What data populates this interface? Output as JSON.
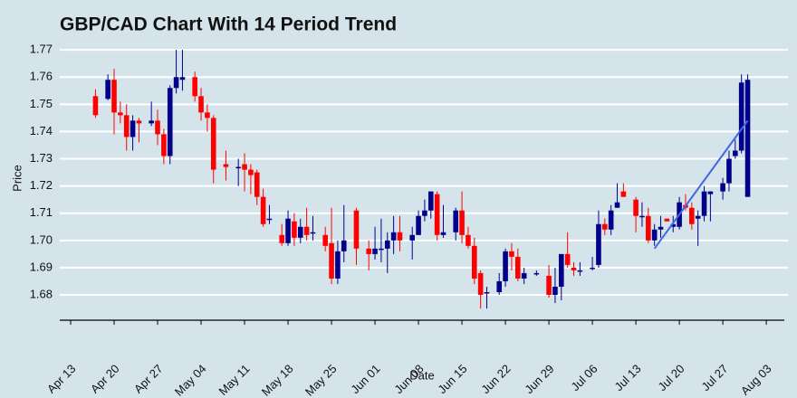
{
  "chart_data": {
    "type": "candlestick",
    "title": "GBP/CAD Chart With 14 Period Trend",
    "xlabel": "Date",
    "ylabel": "Price",
    "x": [
      4,
      6,
      7,
      8,
      9,
      10,
      11,
      13,
      14,
      15,
      16,
      17,
      18,
      20,
      21,
      22,
      23,
      25,
      27,
      28,
      29,
      30,
      31,
      32,
      34,
      35,
      36,
      37,
      38,
      39,
      41,
      42,
      43,
      44,
      46,
      48,
      49,
      50,
      51,
      52,
      53,
      55,
      56,
      57,
      58,
      59,
      60,
      62,
      63,
      64,
      65,
      66,
      67,
      69,
      70,
      71,
      72,
      73,
      75,
      77,
      78,
      79,
      80,
      81,
      82,
      84,
      85,
      86,
      87,
      88,
      89,
      91,
      92,
      93,
      94,
      95,
      96,
      97,
      98,
      99,
      100,
      101,
      102,
      103,
      105,
      106,
      107,
      108,
      109
    ],
    "open": [
      1.753,
      1.752,
      1.759,
      1.747,
      1.746,
      1.738,
      1.744,
      1.743,
      1.744,
      1.739,
      1.731,
      1.756,
      1.759,
      1.76,
      1.753,
      1.747,
      1.745,
      1.728,
      1.727,
      1.728,
      1.726,
      1.725,
      1.716,
      1.708,
      1.702,
      1.699,
      1.707,
      1.701,
      1.705,
      1.703,
      1.702,
      1.699,
      1.686,
      1.696,
      1.711,
      1.697,
      1.695,
      1.697,
      1.697,
      1.7,
      1.703,
      1.7,
      1.702,
      1.709,
      1.711,
      1.717,
      1.702,
      1.703,
      1.711,
      1.702,
      1.698,
      1.688,
      1.681,
      1.681,
      1.685,
      1.696,
      1.694,
      1.686,
      1.688,
      1.687,
      1.68,
      1.683,
      1.695,
      1.69,
      1.689,
      1.69,
      1.691,
      1.706,
      1.704,
      1.712,
      1.718,
      1.715,
      1.709,
      1.709,
      1.7,
      1.704,
      1.708,
      1.705,
      1.705,
      1.713,
      1.712,
      1.708,
      1.709,
      1.717,
      1.718,
      1.721,
      1.731,
      1.733,
      1.716
    ],
    "high": [
      1.7555,
      1.761,
      1.763,
      1.751,
      1.75,
      1.746,
      1.745,
      1.751,
      1.748,
      1.741,
      1.757,
      1.77,
      1.77,
      1.762,
      1.756,
      1.75,
      1.746,
      1.733,
      1.73,
      1.732,
      1.728,
      1.726,
      1.719,
      1.713,
      1.706,
      1.711,
      1.71,
      1.708,
      1.712,
      1.709,
      1.705,
      1.712,
      1.7,
      1.713,
      1.712,
      1.7,
      1.705,
      1.708,
      1.703,
      1.709,
      1.709,
      1.705,
      1.711,
      1.715,
      1.718,
      1.718,
      1.713,
      1.712,
      1.718,
      1.705,
      1.701,
      1.689,
      1.683,
      1.688,
      1.697,
      1.699,
      1.697,
      1.69,
      1.689,
      1.691,
      1.69,
      1.695,
      1.703,
      1.692,
      1.692,
      1.694,
      1.711,
      1.708,
      1.713,
      1.721,
      1.721,
      1.716,
      1.714,
      1.712,
      1.706,
      1.709,
      1.708,
      1.709,
      1.716,
      1.717,
      1.714,
      1.711,
      1.72,
      1.718,
      1.723,
      1.733,
      1.737,
      1.761,
      1.761
    ],
    "low": [
      1.745,
      1.7515,
      1.739,
      1.743,
      1.733,
      1.733,
      1.736,
      1.742,
      1.735,
      1.728,
      1.728,
      1.754,
      1.755,
      1.751,
      1.744,
      1.74,
      1.721,
      1.722,
      1.72,
      1.718,
      1.717,
      1.713,
      1.705,
      1.706,
      1.698,
      1.698,
      1.698,
      1.699,
      1.7,
      1.7,
      1.696,
      1.684,
      1.684,
      1.692,
      1.691,
      1.689,
      1.693,
      1.692,
      1.688,
      1.695,
      1.696,
      1.693,
      1.702,
      1.707,
      1.708,
      1.7,
      1.701,
      1.7,
      1.699,
      1.697,
      1.684,
      1.675,
      1.675,
      1.68,
      1.683,
      1.689,
      1.685,
      1.684,
      1.687,
      1.679,
      1.677,
      1.678,
      1.69,
      1.687,
      1.687,
      1.689,
      1.69,
      1.702,
      1.702,
      1.712,
      1.716,
      1.703,
      1.705,
      1.699,
      1.698,
      1.701,
      1.707,
      1.703,
      1.704,
      1.711,
      1.704,
      1.698,
      1.707,
      1.707,
      1.715,
      1.718,
      1.73,
      1.732,
      1.716
    ],
    "close": [
      1.746,
      1.759,
      1.747,
      1.746,
      1.738,
      1.744,
      1.743,
      1.744,
      1.739,
      1.731,
      1.756,
      1.76,
      1.76,
      1.753,
      1.747,
      1.745,
      1.726,
      1.727,
      1.727,
      1.726,
      1.724,
      1.716,
      1.706,
      1.708,
      1.699,
      1.708,
      1.701,
      1.705,
      1.702,
      1.703,
      1.698,
      1.686,
      1.696,
      1.7,
      1.697,
      1.695,
      1.697,
      1.697,
      1.7,
      1.703,
      1.7,
      1.702,
      1.709,
      1.711,
      1.718,
      1.702,
      1.703,
      1.711,
      1.702,
      1.698,
      1.686,
      1.68,
      1.681,
      1.685,
      1.696,
      1.694,
      1.686,
      1.688,
      1.688,
      1.68,
      1.683,
      1.695,
      1.691,
      1.689,
      1.689,
      1.69,
      1.706,
      1.704,
      1.711,
      1.714,
      1.716,
      1.709,
      1.709,
      1.7,
      1.704,
      1.705,
      1.707,
      1.706,
      1.714,
      1.712,
      1.706,
      1.709,
      1.718,
      1.718,
      1.721,
      1.73,
      1.733,
      1.758,
      1.759
    ],
    "up_color": "#00008b",
    "down_color": "#ff0000",
    "trend": {
      "x": [
        94,
        109
      ],
      "values": [
        1.697,
        1.744
      ],
      "color": "#4169e1"
    },
    "xlim": [
      -1.75,
      114.9
    ],
    "ylim": [
      1.6707,
      1.7727
    ],
    "yticks": [
      1.68,
      1.69,
      {
        "value": 1.7,
        "label": "1.70"
      },
      1.71,
      1.72,
      1.73,
      1.74,
      1.75,
      1.76,
      1.77
    ],
    "xticks": [
      {
        "value": 0,
        "label": "Apr 13"
      },
      {
        "value": 7,
        "label": "Apr 20"
      },
      {
        "value": 14,
        "label": "Apr 27"
      },
      {
        "value": 21,
        "label": "May 04"
      },
      {
        "value": 28,
        "label": "May 11"
      },
      {
        "value": 35,
        "label": "May 18"
      },
      {
        "value": 42,
        "label": "May 25"
      },
      {
        "value": 49,
        "label": "Jun 01"
      },
      {
        "value": 56,
        "label": "Jun 08"
      },
      {
        "value": 63,
        "label": "Jun 15"
      },
      {
        "value": 70,
        "label": "Jun 22"
      },
      {
        "value": 77,
        "label": "Jun 29"
      },
      {
        "value": 84,
        "label": "Jul 06"
      },
      {
        "value": 91,
        "label": "Jul 13"
      },
      {
        "value": 98,
        "label": "Jul 20"
      },
      {
        "value": 105,
        "label": "Jul 27"
      },
      {
        "value": 112,
        "label": "Aug 03"
      }
    ],
    "grid": true
  }
}
